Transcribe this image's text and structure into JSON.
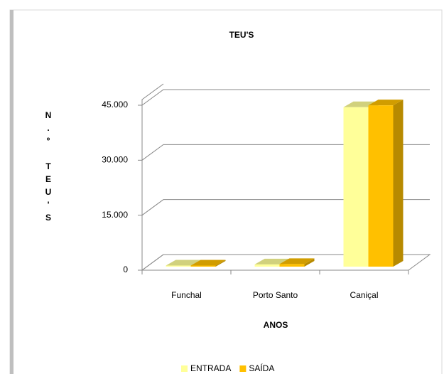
{
  "chart_data": {
    "type": "bar3d",
    "title": "TEU'S",
    "y_label": "N.º TEU'S",
    "x_label": "ANOS",
    "categories": [
      "Funchal",
      "Porto Santo",
      "Caniçal"
    ],
    "series": [
      {
        "name": "ENTRADA",
        "color": "#ffff99",
        "values": [
          300,
          600,
          43500
        ]
      },
      {
        "name": "SAÍDA",
        "color": "#ffc000",
        "values": [
          300,
          700,
          44000
        ]
      }
    ],
    "ylim": [
      0,
      45000
    ],
    "yticks": [
      0,
      {
        "value": 15000,
        "label": "15.000"
      },
      {
        "value": 30000,
        "label": "30.000"
      },
      {
        "value": 45000,
        "label": "45.000"
      }
    ],
    "grid": true,
    "legend": "bottom"
  }
}
